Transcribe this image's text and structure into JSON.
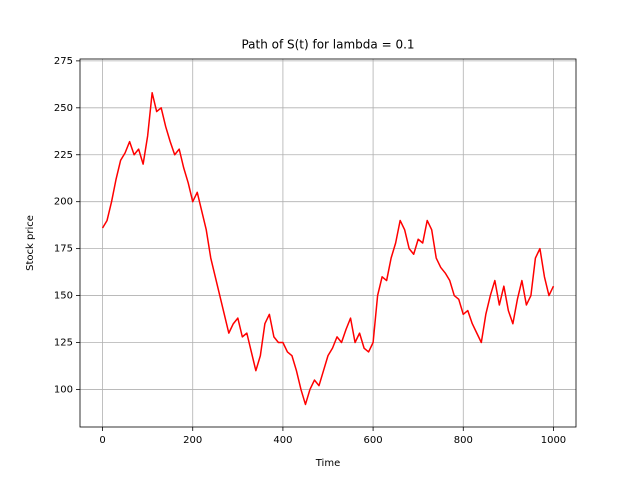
{
  "chart_data": {
    "type": "line",
    "title": "Path of S(t) for lambda = 0.1",
    "x_label": "Time",
    "y_label": "Stock price",
    "x": [
      0,
      10,
      20,
      30,
      40,
      50,
      60,
      70,
      80,
      90,
      100,
      110,
      120,
      130,
      140,
      150,
      160,
      170,
      180,
      190,
      200,
      210,
      220,
      230,
      240,
      250,
      260,
      270,
      280,
      290,
      300,
      310,
      320,
      330,
      340,
      350,
      360,
      370,
      380,
      390,
      400,
      410,
      420,
      430,
      440,
      450,
      460,
      470,
      480,
      490,
      500,
      510,
      520,
      530,
      540,
      550,
      560,
      570,
      580,
      590,
      600,
      610,
      620,
      630,
      640,
      650,
      660,
      670,
      680,
      690,
      700,
      710,
      720,
      730,
      740,
      750,
      760,
      770,
      780,
      790,
      800,
      810,
      820,
      830,
      840,
      850,
      860,
      870,
      880,
      890,
      900,
      910,
      920,
      930,
      940,
      950,
      960,
      970,
      980,
      990,
      1000
    ],
    "series": [
      {
        "color": "#ff0000",
        "values": [
          186,
          190,
          200,
          212,
          222,
          226,
          232,
          225,
          228,
          220,
          235,
          258,
          248,
          250,
          240,
          232,
          225,
          228,
          218,
          210,
          200,
          205,
          195,
          185,
          170,
          160,
          150,
          140,
          130,
          135,
          138,
          128,
          130,
          120,
          110,
          118,
          135,
          140,
          128,
          125,
          125,
          120,
          118,
          110,
          100,
          92,
          100,
          105,
          102,
          110,
          118,
          122,
          128,
          125,
          132,
          138,
          125,
          130,
          122,
          120,
          125,
          150,
          160,
          158,
          170,
          178,
          190,
          185,
          175,
          172,
          180,
          178,
          190,
          185,
          170,
          165,
          162,
          158,
          150,
          148,
          140,
          142,
          135,
          130,
          125,
          140,
          150,
          158,
          145,
          155,
          142,
          135,
          148,
          158,
          145,
          150,
          170,
          175,
          160,
          150,
          155
        ]
      }
    ],
    "xlim": [
      -50,
      1050
    ],
    "ylim": [
      80,
      276
    ],
    "xticks": [
      0,
      200,
      400,
      600,
      800,
      1000
    ],
    "yticks": [
      100,
      125,
      150,
      175,
      200,
      225,
      250,
      275
    ],
    "grid": true
  }
}
